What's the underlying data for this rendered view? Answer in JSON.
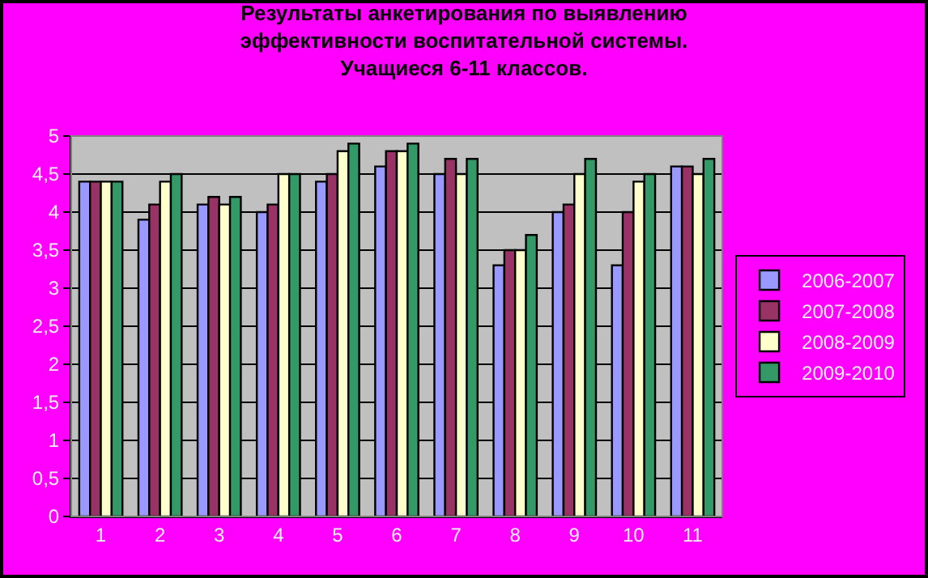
{
  "chart_data": {
    "type": "bar",
    "title": "Результаты анкетирования по выявлению\nэффективности воспитательной системы.\nУчащиеся 6-11 классов.",
    "categories": [
      "1",
      "2",
      "3",
      "4",
      "5",
      "6",
      "7",
      "8",
      "9",
      "10",
      "11"
    ],
    "series": [
      {
        "name": "2006-2007",
        "color": "#9999ff",
        "values": [
          4.4,
          3.9,
          4.1,
          4.0,
          4.4,
          4.6,
          4.5,
          3.3,
          4.0,
          3.3,
          4.6
        ]
      },
      {
        "name": "2007-2008",
        "color": "#993366",
        "values": [
          4.4,
          4.1,
          4.2,
          4.1,
          4.5,
          4.8,
          4.7,
          3.5,
          4.1,
          4.0,
          4.6
        ]
      },
      {
        "name": "2008-2009",
        "color": "#ffffcc",
        "values": [
          4.4,
          4.4,
          4.1,
          4.5,
          4.8,
          4.8,
          4.5,
          3.5,
          4.5,
          4.4,
          4.5
        ]
      },
      {
        "name": "2009-2010",
        "color": "#339966",
        "values": [
          4.4,
          4.5,
          4.2,
          4.5,
          4.9,
          4.9,
          4.7,
          3.7,
          4.7,
          4.5,
          4.7
        ]
      }
    ],
    "ylim": [
      0,
      5
    ],
    "yticks": [
      0,
      {
        "value": 0.5,
        "label": "0,5"
      },
      1,
      {
        "value": 1.5,
        "label": "1,5"
      },
      2,
      {
        "value": 2.5,
        "label": "2,5"
      },
      3,
      {
        "value": 3.5,
        "label": "3,5"
      },
      4,
      {
        "value": 4.5,
        "label": "4,5"
      },
      5
    ],
    "grid": "y",
    "legend": "right"
  }
}
